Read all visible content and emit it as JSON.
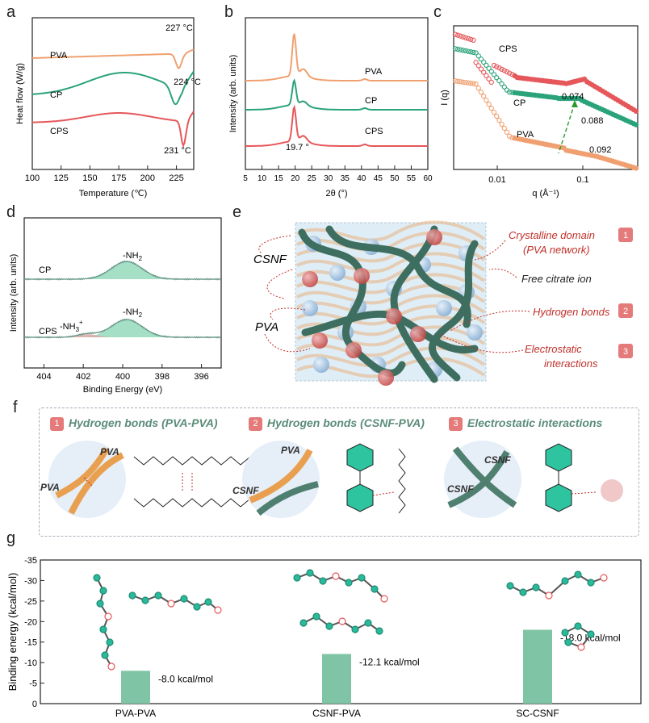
{
  "panels": {
    "a": "a",
    "b": "b",
    "c": "c",
    "d": "d",
    "e": "e",
    "f": "f",
    "g": "g"
  },
  "colors": {
    "pva": "#f0a070",
    "cp": "#2aa37a",
    "cps": "#e5575a",
    "bar": "#7fc4a4",
    "green": "#4f7f6f",
    "red": "#c0302a"
  },
  "chart_data": [
    {
      "id": "a",
      "type": "line",
      "xlabel": "Temperature (℃)",
      "ylabel": "Heat flow (W/g)",
      "xlim": [
        100,
        240
      ],
      "xticks": [
        100,
        125,
        150,
        175,
        200,
        225
      ],
      "series": [
        {
          "name": "PVA",
          "peak_x": 227,
          "peak_label": "227 °C"
        },
        {
          "name": "CP",
          "peak_x": 224,
          "peak_label": "224 °C"
        },
        {
          "name": "CPS",
          "peak_x": 231,
          "peak_label": "231 °C"
        }
      ]
    },
    {
      "id": "b",
      "type": "line",
      "xlabel": "2θ (°)",
      "ylabel": "Intensity (arb. units)",
      "xlim": [
        5,
        60
      ],
      "xticks": [
        5,
        10,
        15,
        20,
        25,
        30,
        35,
        40,
        45,
        50,
        55,
        60
      ],
      "series": [
        {
          "name": "PVA"
        },
        {
          "name": "CP"
        },
        {
          "name": "CPS"
        }
      ],
      "annotation": "19.7 °"
    },
    {
      "id": "c",
      "type": "scatter",
      "xlabel": "q (Å⁻¹)",
      "ylabel": "I (q)",
      "xticks": [
        "0.01",
        "0.1"
      ],
      "series": [
        {
          "name": "CPS"
        },
        {
          "name": "CP"
        },
        {
          "name": "PVA"
        }
      ],
      "peaks": [
        "0.074",
        "0.088",
        "0.092"
      ]
    },
    {
      "id": "d",
      "type": "line",
      "xlabel": "Binding Energy (eV)",
      "ylabel": "Intensity (arb. units)",
      "xlim": [
        405,
        395
      ],
      "xticks": [
        404,
        402,
        400,
        398,
        396
      ],
      "series": [
        {
          "name": "CP",
          "labels": [
            "-NH2"
          ]
        },
        {
          "name": "CPS",
          "labels": [
            "-NH2",
            "-NH3+"
          ]
        }
      ]
    },
    {
      "id": "g",
      "type": "bar",
      "ylabel": "Binding energy (kcal/mol)",
      "categories": [
        "PVA-PVA",
        "CSNF-PVA",
        "SC-CSNF"
      ],
      "values": [
        -8.0,
        -12.1,
        -18.0
      ],
      "value_labels": [
        "-8.0 kcal/mol",
        "-12.1 kcal/mol",
        "-18.0 kcal/mol"
      ],
      "ylim": [
        0,
        -35
      ],
      "yticks": [
        "-35",
        "-30",
        "-25",
        "-20",
        "-15",
        "-10",
        "-5",
        "0"
      ]
    }
  ],
  "d_labels": {
    "nh2": "-NH",
    "nh2_sub": "2",
    "nh3": "-NH",
    "nh3_sub": "3",
    "nh3_sup": "+"
  },
  "e": {
    "left_labels": [
      "CSNF",
      "PVA"
    ],
    "right_labels": [
      "Crystalline domain",
      "(PVA network)",
      "Free citrate ion",
      "Hydrogen bonds",
      "Electrostatic",
      "interactions"
    ],
    "badges": [
      "1",
      "2",
      "3"
    ]
  },
  "f": {
    "titles": [
      "Hydrogen bonds (PVA-PVA)",
      "Hydrogen bonds (CSNF-PVA)",
      "Electrostatic interactions"
    ],
    "badges": [
      "1",
      "2",
      "3"
    ],
    "circle_labels": [
      [
        "PVA",
        "PVA"
      ],
      [
        "PVA",
        "CSNF"
      ],
      [
        "CSNF",
        "CSNF"
      ]
    ]
  }
}
